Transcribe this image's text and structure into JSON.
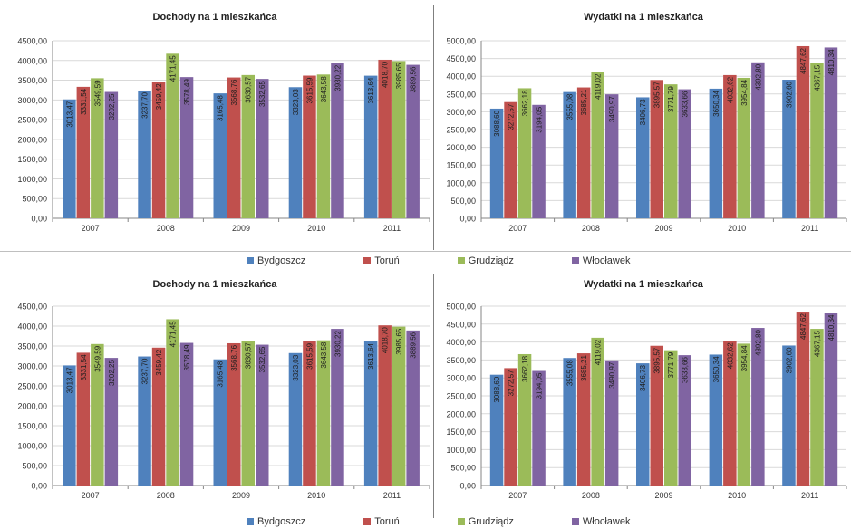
{
  "colors": {
    "Bydgoszcz": "#4f81bd",
    "Toruń": "#c0504d",
    "Grudziądz": "#9bbb59",
    "Włocławek": "#8064a2"
  },
  "legend": {
    "items": [
      "Bydgoszcz",
      "Toruń",
      "Grudziądz",
      "Włocławek"
    ]
  },
  "chart_data": [
    {
      "type": "bar",
      "title": "Dochody na 1 mieszkańca",
      "categories": [
        "2007",
        "2008",
        "2009",
        "2010",
        "2011"
      ],
      "ylim": [
        0,
        4500
      ],
      "yticks": [
        "0,00",
        "500,00",
        "1000,00",
        "1500,00",
        "2000,00",
        "2500,00",
        "3000,00",
        "3500,00",
        "4000,00",
        "4500,00"
      ],
      "series": [
        {
          "name": "Bydgoszcz",
          "values": [
            3013.47,
            3237.7,
            3165.48,
            3323.03,
            3613.64
          ],
          "labels": [
            "3013,47",
            "3237,70",
            "3165,48",
            "3323,03",
            "3613,64"
          ]
        },
        {
          "name": "Toruń",
          "values": [
            3331.54,
            3459.42,
            3568.76,
            3615.59,
            4018.7
          ],
          "labels": [
            "3331,54",
            "3459,42",
            "3568,76",
            "3615,59",
            "4018,70"
          ]
        },
        {
          "name": "Grudziądz",
          "values": [
            3549.59,
            4171.45,
            3630.57,
            3643.58,
            3985.65
          ],
          "labels": [
            "3549,59",
            "4171,45",
            "3630,57",
            "3643,58",
            "3985,65"
          ]
        },
        {
          "name": "Włocławek",
          "values": [
            3202.25,
            3578.49,
            3532.65,
            3930.22,
            3889.56
          ],
          "labels": [
            "3202,25",
            "3578,49",
            "3532,65",
            "3930,22",
            "3889,56"
          ]
        }
      ]
    },
    {
      "type": "bar",
      "title": "Wydatki na 1 mieszkańca",
      "categories": [
        "2007",
        "2008",
        "2009",
        "2010",
        "2011"
      ],
      "ylim": [
        0,
        5000
      ],
      "yticks": [
        "0,00",
        "500,00",
        "1000,00",
        "1500,00",
        "2000,00",
        "2500,00",
        "3000,00",
        "3500,00",
        "4000,00",
        "4500,00",
        "5000,00"
      ],
      "series": [
        {
          "name": "Bydgoszcz",
          "values": [
            3088.6,
            3555.08,
            3406.73,
            3650.34,
            3902.6
          ],
          "labels": [
            "3088,60",
            "3555,08",
            "3406,73",
            "3650,34",
            "3902,60"
          ]
        },
        {
          "name": "Toruń",
          "values": [
            3272.57,
            3685.21,
            3895.57,
            4032.62,
            4847.62
          ],
          "labels": [
            "3272,57",
            "3685,21",
            "3895,57",
            "4032,62",
            "4847,62"
          ]
        },
        {
          "name": "Grudziądz",
          "values": [
            3662.18,
            4119.02,
            3771.79,
            3954.84,
            4367.15
          ],
          "labels": [
            "3662,18",
            "4119,02",
            "3771,79",
            "3954,84",
            "4367,15"
          ]
        },
        {
          "name": "Włocławek",
          "values": [
            3194.05,
            3490.97,
            3633.66,
            4392.8,
            4810.34
          ],
          "labels": [
            "3194,05",
            "3490,97",
            "3633,66",
            "4392,80",
            "4810,34"
          ]
        }
      ]
    },
    {
      "type": "bar",
      "title": "Dochody na 1 mieszkańca",
      "categories": [
        "2007",
        "2008",
        "2009",
        "2010",
        "2011"
      ],
      "ylim": [
        0,
        4500
      ],
      "yticks": [
        "0,00",
        "500,00",
        "1000,00",
        "1500,00",
        "2000,00",
        "2500,00",
        "3000,00",
        "3500,00",
        "4000,00",
        "4500,00"
      ],
      "series": [
        {
          "name": "Bydgoszcz",
          "values": [
            3013.47,
            3237.7,
            3165.48,
            3323.03,
            3613.64
          ],
          "labels": [
            "3013,47",
            "3237,70",
            "3165,48",
            "3323,03",
            "3613,64"
          ]
        },
        {
          "name": "Toruń",
          "values": [
            3331.54,
            3459.42,
            3568.76,
            3615.59,
            4018.7
          ],
          "labels": [
            "3331,54",
            "3459,42",
            "3568,76",
            "3615,59",
            "4018,70"
          ]
        },
        {
          "name": "Grudziądz",
          "values": [
            3549.59,
            4171.45,
            3630.57,
            3643.58,
            3985.65
          ],
          "labels": [
            "3549,59",
            "4171,45",
            "3630,57",
            "3643,58",
            "3985,65"
          ]
        },
        {
          "name": "Włocławek",
          "values": [
            3202.25,
            3578.49,
            3532.65,
            3930.22,
            3889.56
          ],
          "labels": [
            "3202,25",
            "3578,49",
            "3532,65",
            "3930,22",
            "3889,56"
          ]
        }
      ]
    },
    {
      "type": "bar",
      "title": "Wydatki na 1 mieszkańca",
      "categories": [
        "2007",
        "2008",
        "2009",
        "2010",
        "2011"
      ],
      "ylim": [
        0,
        5000
      ],
      "yticks": [
        "0,00",
        "500,00",
        "1000,00",
        "1500,00",
        "2000,00",
        "2500,00",
        "3000,00",
        "3500,00",
        "4000,00",
        "4500,00",
        "5000,00"
      ],
      "series": [
        {
          "name": "Bydgoszcz",
          "values": [
            3088.6,
            3555.08,
            3406.73,
            3650.34,
            3902.6
          ],
          "labels": [
            "3088,60",
            "3555,08",
            "3406,73",
            "3650,34",
            "3902,60"
          ]
        },
        {
          "name": "Toruń",
          "values": [
            3272.57,
            3685.21,
            3895.57,
            4032.62,
            4847.62
          ],
          "labels": [
            "3272,57",
            "3685,21",
            "3895,57",
            "4032,62",
            "4847,62"
          ]
        },
        {
          "name": "Grudziądz",
          "values": [
            3662.18,
            4119.02,
            3771.79,
            3954.84,
            4367.15
          ],
          "labels": [
            "3662,18",
            "4119,02",
            "3771,79",
            "3954,84",
            "4367,15"
          ]
        },
        {
          "name": "Włocławek",
          "values": [
            3194.05,
            3490.97,
            3633.66,
            4392.8,
            4810.34
          ],
          "labels": [
            "3194,05",
            "3490,97",
            "3633,66",
            "4392,80",
            "4810,34"
          ]
        }
      ]
    }
  ]
}
